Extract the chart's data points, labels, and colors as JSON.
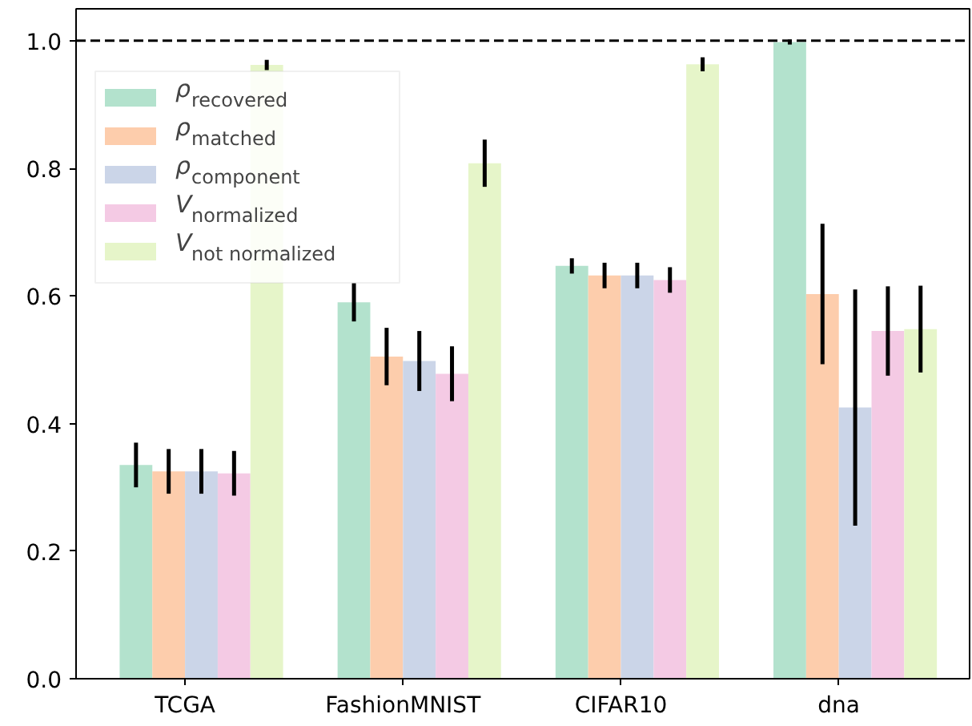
{
  "chart_data": {
    "type": "bar",
    "categories": [
      "TCGA",
      "FashionMNIST",
      "CIFAR10",
      "dna"
    ],
    "series": [
      {
        "name": "ρ$_{recovered}$",
        "color": "#b3e2cd",
        "values": [
          0.335,
          0.59,
          0.647,
          0.998
        ],
        "errors": [
          0.035,
          0.03,
          0.012,
          0.004
        ]
      },
      {
        "name": "ρ$_{matched}$",
        "color": "#fdcdac",
        "values": [
          0.325,
          0.505,
          0.632,
          0.603
        ],
        "errors": [
          0.035,
          0.045,
          0.02,
          0.11
        ]
      },
      {
        "name": "ρ$_{component}$",
        "color": "#cbd5e8",
        "values": [
          0.325,
          0.498,
          0.632,
          0.425
        ],
        "errors": [
          0.035,
          0.047,
          0.02,
          0.185
        ]
      },
      {
        "name": "V$_{normalized}$",
        "color": "#f4cae4",
        "values": [
          0.322,
          0.478,
          0.625,
          0.545
        ],
        "errors": [
          0.035,
          0.043,
          0.02,
          0.07
        ]
      },
      {
        "name": "V$_{not normalized}$",
        "color": "#e6f5c9",
        "values": [
          0.962,
          0.808,
          0.963,
          0.548
        ],
        "errors": [
          0.008,
          0.037,
          0.011,
          0.068
        ]
      }
    ],
    "ylim": [
      0,
      1.05
    ],
    "yticks": [
      {
        "value": 0,
        "label": "0.0"
      },
      {
        "value": 0.2,
        "label": "0.2"
      },
      {
        "value": 0.4,
        "label": "0.4"
      },
      {
        "value": 0.6,
        "label": "0.6"
      },
      {
        "value": 0.8,
        "label": "0.8"
      },
      {
        "value": 1.0,
        "label": "1.0"
      }
    ],
    "ref_lines": [
      {
        "axis": "y",
        "value": 1.0,
        "color": "#000000",
        "line_style": "dashed"
      }
    ],
    "legend": "top left",
    "grid": false
  }
}
